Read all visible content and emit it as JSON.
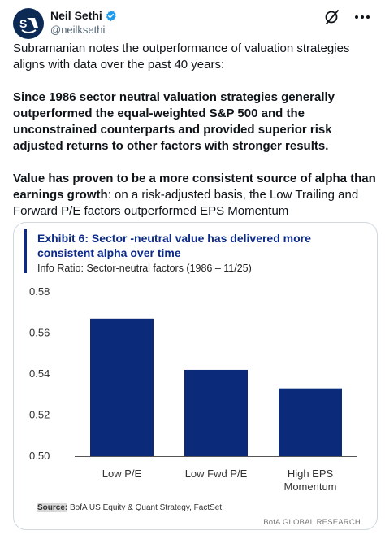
{
  "author": {
    "name": "Neil Sethi",
    "handle": "@neilksethi"
  },
  "tweet": {
    "intro": "Subramanian notes the outperformance of valuation strategies aligns with data over the past 40 years:",
    "para1": "Since 1986 sector neutral valuation strategies generally outperformed the equal-weighted S&P 500 and the unconstrained counterparts and provided superior risk adjusted returns to other factors with stronger results.",
    "para2_bold": "Value has proven to be a more consistent source of alpha than earnings growth",
    "para2_rest": ": on a risk-adjusted basis, the Low Trailing and Forward P/E factors outperformed EPS Momentum"
  },
  "icons": {
    "avatar": "sa-logo-avatar",
    "verified": "verified-badge-icon",
    "grok": "grok-icon",
    "more": "more-icon"
  },
  "colors": {
    "accent": "#1d9bf0",
    "chart_bar": "#0b2a7a",
    "chart_title": "#0b2a8a"
  },
  "exhibit": {
    "title": "Exhibit 6: Sector -neutral value has delivered more consistent alpha over time",
    "subtitle": "Info Ratio: Sector-neutral factors (1986 – 11/25)",
    "source_label": "Source:",
    "source_text": " BofA US Equity & Quant Strategy, FactSet",
    "brand": "BofA GLOBAL RESEARCH"
  },
  "chart_data": {
    "type": "bar",
    "categories": [
      [
        "Low P/E"
      ],
      [
        "Low Fwd P/E"
      ],
      [
        "High EPS",
        "Momentum"
      ]
    ],
    "values": [
      0.567,
      0.542,
      0.533
    ],
    "yticks": [
      "0.50",
      "0.52",
      "0.54",
      "0.56",
      "0.58"
    ],
    "ylim": [
      0.5,
      0.58
    ],
    "grid": false,
    "title": "Exhibit 6: Sector -neutral value has delivered more consistent alpha over time",
    "xlabel": "",
    "ylabel": ""
  }
}
